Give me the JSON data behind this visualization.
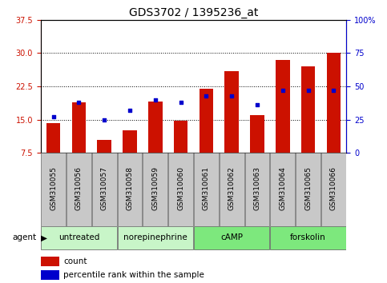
{
  "title": "GDS3702 / 1395236_at",
  "samples": [
    "GSM310055",
    "GSM310056",
    "GSM310057",
    "GSM310058",
    "GSM310059",
    "GSM310060",
    "GSM310061",
    "GSM310062",
    "GSM310063",
    "GSM310064",
    "GSM310065",
    "GSM310066"
  ],
  "counts": [
    14.2,
    18.8,
    10.5,
    12.5,
    19.0,
    14.8,
    22.0,
    26.0,
    16.0,
    28.5,
    27.0,
    30.0
  ],
  "percentiles": [
    27,
    38,
    25,
    32,
    40,
    38,
    43,
    43,
    36,
    47,
    47,
    47
  ],
  "group_labels": [
    "untreated",
    "norepinephrine",
    "cAMP",
    "forskolin"
  ],
  "group_ranges": [
    [
      0,
      3
    ],
    [
      3,
      6
    ],
    [
      6,
      9
    ],
    [
      9,
      12
    ]
  ],
  "group_color_light": "#c8f5c8",
  "group_color_dark": "#7de87d",
  "ylim_left": [
    7.5,
    37.5
  ],
  "ylim_right": [
    0,
    100
  ],
  "yticks_left": [
    7.5,
    15.0,
    22.5,
    30.0,
    37.5
  ],
  "yticks_right": [
    0,
    25,
    50,
    75,
    100
  ],
  "bar_color": "#cc1100",
  "dot_color": "#0000cc",
  "xtick_bg": "#c8c8c8",
  "plot_bg": "#ffffff",
  "grid_color": "#000000",
  "legend_count": "count",
  "legend_pct": "percentile rank within the sample",
  "title_fontsize": 10,
  "tick_fontsize": 7,
  "xtick_fontsize": 6.5,
  "legend_fontsize": 7.5,
  "group_fontsize": 7.5,
  "agent_fontsize": 7.5
}
